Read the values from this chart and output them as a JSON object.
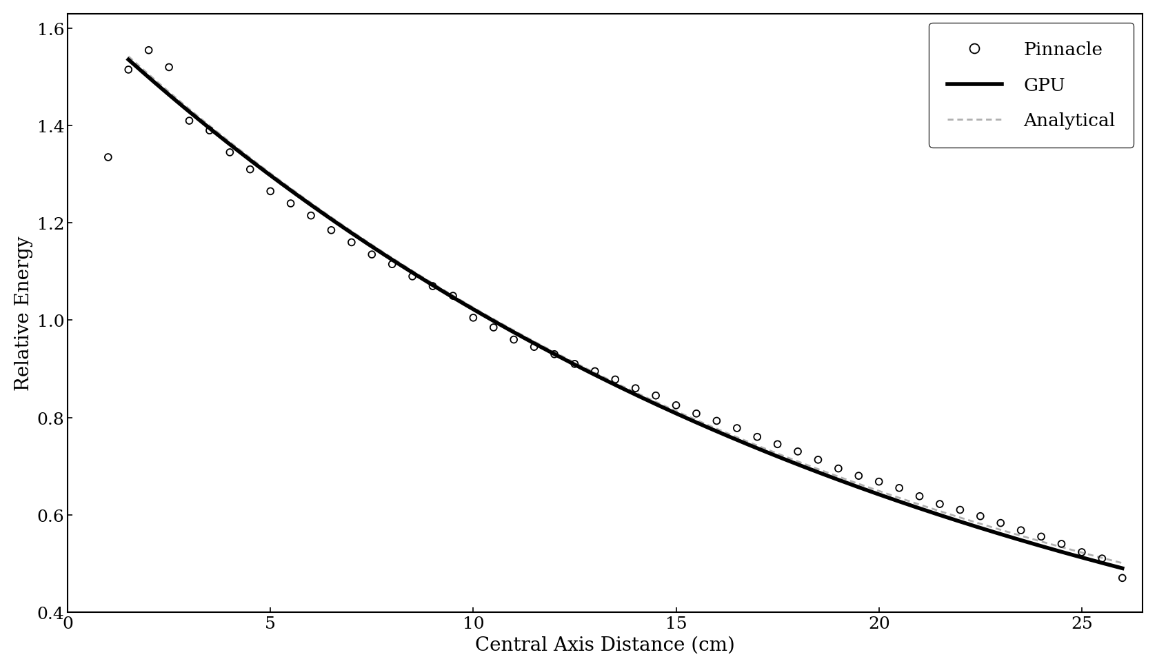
{
  "title": "",
  "xlabel": "Central Axis Distance (cm)",
  "ylabel": "Relative Energy",
  "xlim": [
    0,
    26.5
  ],
  "ylim": [
    0.4,
    1.63
  ],
  "xticks": [
    0,
    5,
    10,
    15,
    20,
    25
  ],
  "yticks": [
    0.4,
    0.6,
    0.8,
    1.0,
    1.2,
    1.4,
    1.6
  ],
  "background_color": "#ffffff",
  "pinnacle_x": [
    1.0,
    1.5,
    2.0,
    2.5,
    3.0,
    3.5,
    4.0,
    4.5,
    5.0,
    5.5,
    6.0,
    6.5,
    7.0,
    7.5,
    8.0,
    8.5,
    9.0,
    9.5,
    10.0,
    10.5,
    11.0,
    11.5,
    12.0,
    12.5,
    13.0,
    13.5,
    14.0,
    14.5,
    15.0,
    15.5,
    16.0,
    16.5,
    17.0,
    17.5,
    18.0,
    18.5,
    19.0,
    19.5,
    20.0,
    20.5,
    21.0,
    21.5,
    22.0,
    22.5,
    23.0,
    23.5,
    24.0,
    24.5,
    25.0,
    25.5,
    26.0
  ],
  "pinnacle_y": [
    1.335,
    1.515,
    1.555,
    1.52,
    1.41,
    1.39,
    1.345,
    1.31,
    1.265,
    1.24,
    1.215,
    1.185,
    1.16,
    1.135,
    1.115,
    1.09,
    1.07,
    1.05,
    1.005,
    0.985,
    0.96,
    0.945,
    0.93,
    0.91,
    0.895,
    0.878,
    0.86,
    0.845,
    0.825,
    0.808,
    0.793,
    0.778,
    0.76,
    0.745,
    0.73,
    0.713,
    0.695,
    0.68,
    0.668,
    0.655,
    0.638,
    0.622,
    0.61,
    0.597,
    0.583,
    0.568,
    0.555,
    0.54,
    0.523,
    0.51,
    0.47
  ],
  "gpu_color": "#000000",
  "analytical_color": "#b0b0b0",
  "pinnacle_color": "#000000",
  "gpu_linewidth": 4.0,
  "analytical_linewidth": 2.0,
  "font_family": "serif",
  "curve_a": 1.695,
  "curve_b": 0.05185,
  "anal_a": 1.72,
  "anal_b": 0.053
}
